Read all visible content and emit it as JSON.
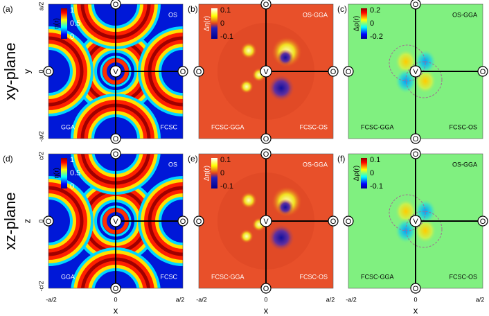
{
  "figure": {
    "center_marker": "V",
    "site_marker": "O",
    "x_axis": {
      "label": "x",
      "ticks": [
        "-a/2",
        "0",
        "a/2"
      ]
    },
    "rows": [
      {
        "label": "xy-plane",
        "axis_label": "y",
        "ticks": [
          "a/2",
          "0",
          "-a/2"
        ]
      },
      {
        "label": "xz-plane",
        "axis_label": "z",
        "ticks": [
          "c/2",
          "0",
          "-c/2"
        ]
      }
    ],
    "panels": [
      {
        "label": "(a)",
        "colorbar": {
          "title": "η(r)",
          "ticks": [
            "1",
            "0.5",
            "0"
          ]
        },
        "quadrants": {
          "top_right": "OS",
          "bottom_left": "GGA",
          "bottom_right": "FCSC"
        }
      },
      {
        "label": "(b)",
        "colorbar": {
          "title": "Δη(r)",
          "ticks": [
            "0.1",
            "0",
            "-0.1"
          ]
        },
        "quadrants": {
          "top_right": "OS-GGA",
          "bottom_left": "FCSC-GGA",
          "bottom_right": "FCSC-OS"
        }
      },
      {
        "label": "(c)",
        "colorbar": {
          "title": "Δρ(r)",
          "ticks": [
            "0.2",
            "0",
            "-0.2"
          ]
        },
        "quadrants": {
          "top_right": "OS-GGA",
          "bottom_left": "FCSC-GGA",
          "bottom_right": "FCSC-OS"
        }
      },
      {
        "label": "(d)",
        "colorbar": {
          "title": "η(r)",
          "ticks": [
            "1",
            "0.5",
            "0"
          ]
        },
        "quadrants": {
          "top_right": "OS",
          "bottom_left": "GGA",
          "bottom_right": "FCSC"
        }
      },
      {
        "label": "(e)",
        "colorbar": {
          "title": "Δη(r)",
          "ticks": [
            "0.1",
            "0",
            "-0.1"
          ]
        },
        "quadrants": {
          "top_right": "OS-GGA",
          "bottom_left": "FCSC-GGA",
          "bottom_right": "FCSC-OS"
        }
      },
      {
        "label": "(f)",
        "colorbar": {
          "title": "Δρ(r)",
          "ticks": [
            "0.1",
            "0",
            "-0.1"
          ]
        },
        "quadrants": {
          "top_right": "OS-GGA",
          "bottom_left": "FCSC-GGA",
          "bottom_right": "FCSC-OS"
        }
      }
    ]
  }
}
